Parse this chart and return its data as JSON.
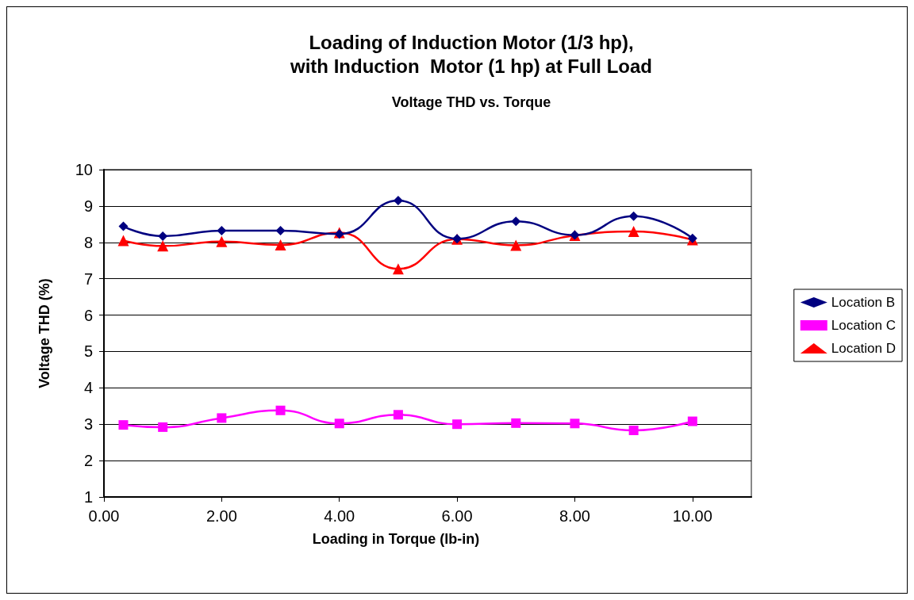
{
  "chart_data": {
    "type": "line",
    "title": "Loading of Induction Motor (1/3 hp),\nwith Induction  Motor (1 hp) at Full Load",
    "subtitle": "Voltage THD vs. Torque",
    "xlabel": "Loading in Torque (lb-in)",
    "ylabel": "Voltage THD (%)",
    "x": [
      0.33,
      1,
      2,
      3,
      4,
      5,
      6,
      7,
      8,
      9,
      10
    ],
    "series": [
      {
        "name": "Location B",
        "color": "#000080",
        "marker": "diamond",
        "values": [
          8.44,
          8.17,
          8.32,
          8.32,
          8.23,
          9.15,
          8.1,
          8.58,
          8.2,
          8.72,
          8.11
        ]
      },
      {
        "name": "Location C",
        "color": "#ff00ff",
        "marker": "square",
        "values": [
          2.98,
          2.92,
          3.17,
          3.38,
          3.02,
          3.26,
          3.0,
          3.03,
          3.02,
          2.83,
          3.08
        ]
      },
      {
        "name": "Location D",
        "color": "#ff0000",
        "marker": "triangle",
        "values": [
          8.05,
          7.9,
          8.02,
          7.93,
          8.27,
          7.27,
          8.09,
          7.92,
          8.19,
          8.3,
          8.07
        ]
      }
    ],
    "xlim": [
      0,
      11
    ],
    "xticks": [
      {
        "value": 0,
        "label": "0.00"
      },
      {
        "value": 2,
        "label": "2.00"
      },
      {
        "value": 4,
        "label": "4.00"
      },
      {
        "value": 6,
        "label": "6.00"
      },
      {
        "value": 8,
        "label": "8.00"
      },
      {
        "value": 10,
        "label": "10.00"
      }
    ],
    "ylim": [
      1,
      10
    ],
    "yticks": [
      1,
      2,
      3,
      4,
      5,
      6,
      7,
      8,
      9,
      10
    ],
    "grid": "y",
    "legend": "right",
    "line_style": "solid"
  }
}
